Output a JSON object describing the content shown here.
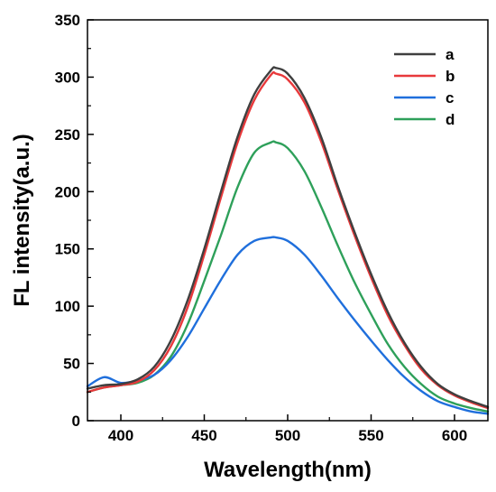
{
  "chart_data": {
    "type": "line",
    "title": "",
    "xlabel": "Wavelength(nm)",
    "ylabel": "FL intensity(a.u.)",
    "xlim": [
      380,
      620
    ],
    "ylim": [
      0,
      350
    ],
    "xticks": [
      "400",
      "450",
      "500",
      "550",
      "600"
    ],
    "yticks": [
      "0",
      "50",
      "100",
      "150",
      "200",
      "250",
      "300",
      "350"
    ],
    "grid": false,
    "legend": "top-right",
    "x": [
      380,
      390,
      400,
      410,
      420,
      430,
      440,
      450,
      460,
      470,
      480,
      490,
      493,
      500,
      510,
      520,
      530,
      540,
      550,
      560,
      570,
      580,
      590,
      600,
      610,
      620
    ],
    "series": [
      {
        "name": "a",
        "color": "#3f3f3f",
        "values": [
          28,
          31,
          32,
          36,
          47,
          70,
          105,
          150,
          200,
          248,
          285,
          306,
          308,
          303,
          282,
          248,
          205,
          165,
          128,
          95,
          68,
          47,
          32,
          23,
          17,
          12
        ]
      },
      {
        "name": "b",
        "color": "#e8393b",
        "values": [
          25,
          29,
          31,
          34,
          44,
          65,
          99,
          145,
          195,
          243,
          280,
          302,
          303,
          298,
          278,
          244,
          202,
          162,
          125,
          92,
          66,
          45,
          31,
          22,
          16,
          11
        ]
      },
      {
        "name": "c",
        "color": "#1f6fdc",
        "values": [
          30,
          38,
          33,
          35,
          40,
          53,
          73,
          98,
          123,
          145,
          157,
          160,
          160,
          157,
          145,
          127,
          107,
          88,
          70,
          53,
          38,
          26,
          17,
          12,
          8,
          6
        ]
      },
      {
        "name": "d",
        "color": "#2ea05a",
        "values": [
          25,
          29,
          31,
          33,
          40,
          56,
          84,
          122,
          162,
          204,
          234,
          243,
          243,
          238,
          218,
          187,
          153,
          121,
          93,
          67,
          47,
          32,
          21,
          15,
          11,
          8
        ]
      }
    ]
  }
}
